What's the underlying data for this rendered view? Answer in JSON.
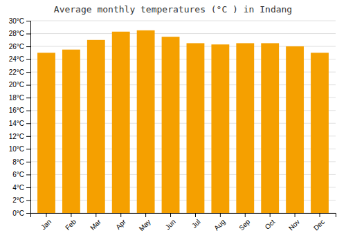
{
  "chart_data": {
    "type": "bar",
    "title": "Average monthly temperatures (°C ) in Indang",
    "categories": [
      "Jan",
      "Feb",
      "Mar",
      "Apr",
      "May",
      "Jun",
      "Jul",
      "Aug",
      "Sep",
      "Oct",
      "Nov",
      "Dec"
    ],
    "values": [
      25.0,
      25.5,
      27.0,
      28.3,
      28.5,
      27.5,
      26.5,
      26.3,
      26.5,
      26.5,
      26.0,
      25.0
    ],
    "color": "#F5A000",
    "ylim": [
      0,
      30
    ],
    "yticks": [
      {
        "value": 0,
        "label": "0°C"
      },
      {
        "value": 2,
        "label": "2°C"
      },
      {
        "value": 4,
        "label": "4°C"
      },
      {
        "value": 6,
        "label": "6°C"
      },
      {
        "value": 8,
        "label": "8°C"
      },
      {
        "value": 10,
        "label": "10°C"
      },
      {
        "value": 12,
        "label": "12°C"
      },
      {
        "value": 14,
        "label": "14°C"
      },
      {
        "value": 16,
        "label": "16°C"
      },
      {
        "value": 18,
        "label": "18°C"
      },
      {
        "value": 20,
        "label": "20°C"
      },
      {
        "value": 22,
        "label": "22°C"
      },
      {
        "value": 24,
        "label": "24°C"
      },
      {
        "value": 26,
        "label": "26°C"
      },
      {
        "value": 28,
        "label": "28°C"
      },
      {
        "value": 30,
        "label": "30°C"
      }
    ],
    "grid": true
  }
}
